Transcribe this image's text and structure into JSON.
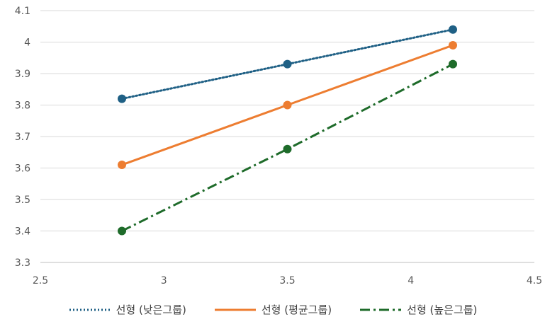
{
  "chart_data": {
    "type": "scatter",
    "xlim": [
      2.5,
      4.5
    ],
    "ylim": [
      3.3,
      4.1
    ],
    "xticks": [
      2.5,
      3,
      3.5,
      4,
      4.5
    ],
    "yticks": [
      3.3,
      3.4,
      3.5,
      3.6,
      3.7,
      3.8,
      3.9,
      4,
      4.1
    ],
    "grid": true,
    "legend_position": "bottom",
    "series": [
      {
        "name": "선형 (낮은그룹)",
        "color": "#1f6085",
        "line_style": "dotted",
        "points": [
          {
            "x": 2.83,
            "y": 3.82
          },
          {
            "x": 3.5,
            "y": 3.93
          },
          {
            "x": 4.17,
            "y": 4.04
          }
        ]
      },
      {
        "name": "선형 (평균그룹)",
        "color": "#ed7d31",
        "line_style": "solid",
        "points": [
          {
            "x": 2.83,
            "y": 3.61
          },
          {
            "x": 3.5,
            "y": 3.8
          },
          {
            "x": 4.17,
            "y": 3.99
          }
        ]
      },
      {
        "name": "선형 (높은그룹)",
        "color": "#1e6b2a",
        "line_style": "dashdot",
        "points": [
          {
            "x": 2.83,
            "y": 3.4
          },
          {
            "x": 3.5,
            "y": 3.66
          },
          {
            "x": 4.17,
            "y": 3.93
          }
        ]
      }
    ]
  }
}
